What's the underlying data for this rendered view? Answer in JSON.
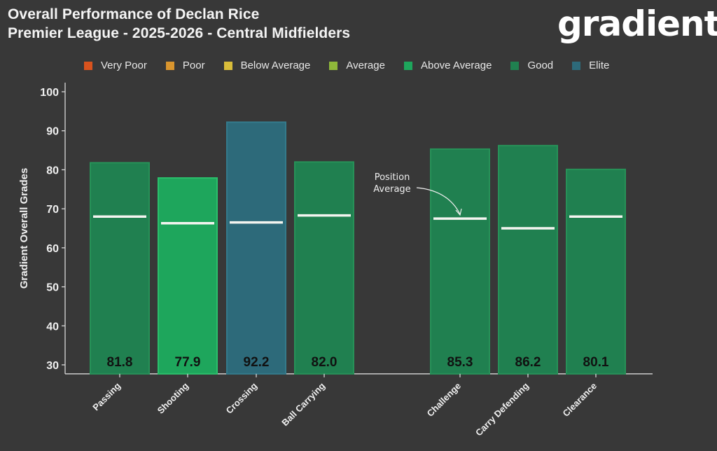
{
  "header": {
    "title_line1": "Overall Performance of Declan Rice",
    "title_line2": "Premier League - 2025-2026 - Central Midfielders",
    "logo": "gradient"
  },
  "legend": [
    {
      "label": "Very Poor",
      "color": "#d9531e"
    },
    {
      "label": "Poor",
      "color": "#d9952e"
    },
    {
      "label": "Below Average",
      "color": "#d9bd3a"
    },
    {
      "label": "Average",
      "color": "#8fb83a"
    },
    {
      "label": "Above Average",
      "color": "#1ea65c"
    },
    {
      "label": "Good",
      "color": "#208050"
    },
    {
      "label": "Elite",
      "color": "#2d6a7a"
    }
  ],
  "chart_data": {
    "type": "bar",
    "title": "Overall Performance of Declan Rice - Premier League - 2025-2026 - Central Midfielders",
    "xlabel": "",
    "ylabel": "Gradient Overall Grades",
    "ylim": [
      27.7,
      102.5
    ],
    "yticks": [
      30,
      40,
      50,
      60,
      70,
      80,
      90,
      100
    ],
    "grid": false,
    "legend_position": "top",
    "categories": [
      "Passing",
      "Shooting",
      "Crossing",
      "Ball Carrying",
      "Challenge",
      "Carry Defending",
      "Clearance"
    ],
    "group_break_after": 3,
    "series": [
      {
        "name": "Declan Rice",
        "values": [
          81.8,
          77.9,
          92.2,
          82.0,
          85.3,
          86.2,
          80.1
        ],
        "grades": [
          "Good",
          "Above Average",
          "Elite",
          "Good",
          "Good",
          "Good",
          "Good"
        ]
      },
      {
        "name": "Position Average",
        "values": [
          68.0,
          66.3,
          66.5,
          68.3,
          67.5,
          65.0,
          68.0
        ]
      }
    ],
    "value_labels": [
      "81.8",
      "77.9",
      "92.2",
      "82.0",
      "85.3",
      "86.2",
      "80.1"
    ],
    "annotation": {
      "text_line1": "Position",
      "text_line2": "Average",
      "target_category": "Challenge"
    }
  }
}
